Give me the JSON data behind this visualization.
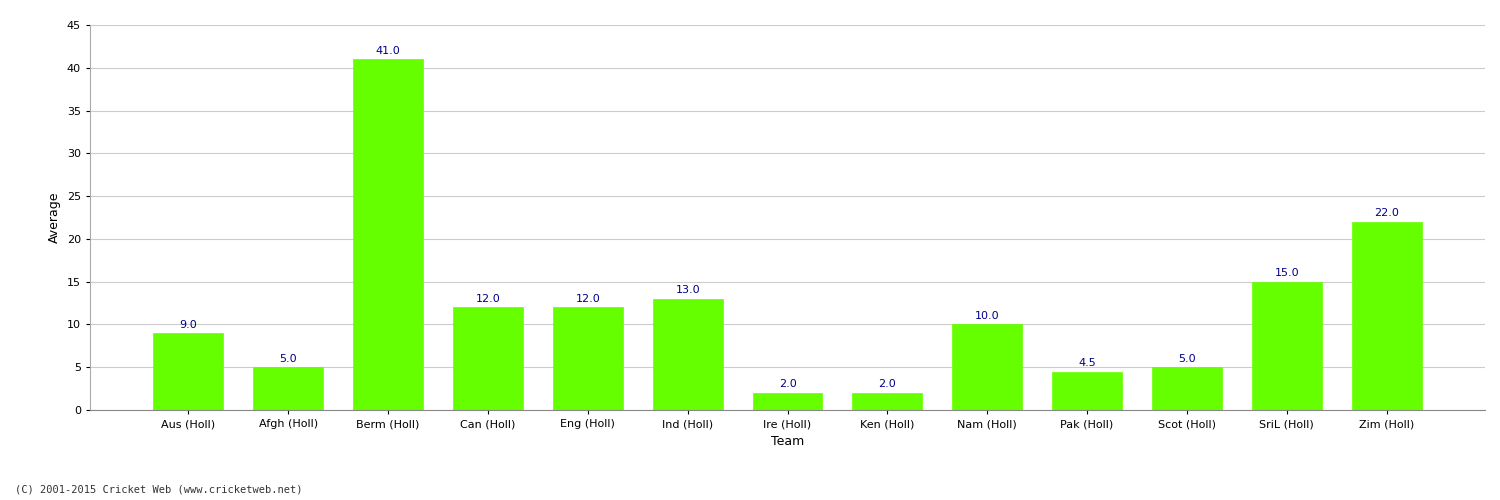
{
  "categories": [
    "Aus (Holl)",
    "Afgh (Holl)",
    "Berm (Holl)",
    "Can (Holl)",
    "Eng (Holl)",
    "Ind (Holl)",
    "Ire (Holl)",
    "Ken (Holl)",
    "Nam (Holl)",
    "Pak (Holl)",
    "Scot (Holl)",
    "SriL (Holl)",
    "Zim (Holl)"
  ],
  "values": [
    9.0,
    5.0,
    41.0,
    12.0,
    12.0,
    13.0,
    2.0,
    2.0,
    10.0,
    4.5,
    5.0,
    15.0,
    22.0
  ],
  "bar_color": "#66ff00",
  "bar_edge_color": "#66ff00",
  "label_color": "#00008B",
  "ylabel": "Average",
  "xlabel": "Team",
  "ylim": [
    0,
    45
  ],
  "yticks": [
    0,
    5,
    10,
    15,
    20,
    25,
    30,
    35,
    40,
    45
  ],
  "grid_color": "#cccccc",
  "background_color": "#ffffff",
  "label_fontsize": 8,
  "axis_fontsize": 9,
  "tick_fontsize": 8,
  "footer": "(C) 2001-2015 Cricket Web (www.cricketweb.net)"
}
